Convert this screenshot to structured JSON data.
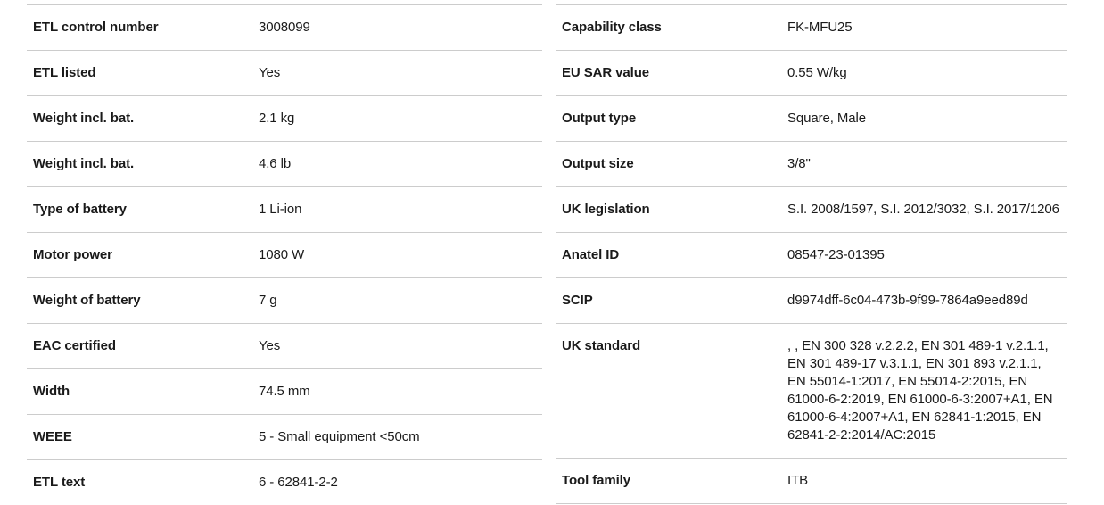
{
  "page": {
    "background_color": "#ffffff",
    "text_color": "#1a1a1a",
    "divider_color": "#cccccc"
  },
  "spec": {
    "left": {
      "rows": [
        {
          "label": "ETL control number",
          "value": "3008099"
        },
        {
          "label": "ETL listed",
          "value": "Yes"
        },
        {
          "label": "Weight incl. bat.",
          "value": "2.1 kg"
        },
        {
          "label": "Weight incl. bat.",
          "value": "4.6 lb"
        },
        {
          "label": "Type of battery",
          "value": "1 Li-ion"
        },
        {
          "label": "Motor power",
          "value": "1080 W"
        },
        {
          "label": "Weight of battery",
          "value": "7 g"
        },
        {
          "label": "EAC certified",
          "value": "Yes"
        },
        {
          "label": "Width",
          "value": "74.5 mm"
        },
        {
          "label": "WEEE",
          "value": "5 - Small equipment <50cm"
        },
        {
          "label": "ETL text",
          "value": "6 - 62841-2-2"
        }
      ]
    },
    "right": {
      "rows": [
        {
          "label": "Capability class",
          "value": "FK-MFU25"
        },
        {
          "label": "EU SAR value",
          "value": "0.55 W/kg"
        },
        {
          "label": "Output type",
          "value": "Square, Male"
        },
        {
          "label": "Output size",
          "value": "3/8\""
        },
        {
          "label": "UK legislation",
          "value": "S.I. 2008/1597, S.I. 2012/3032, S.I. 2017/1206"
        },
        {
          "label": "Anatel ID",
          "value": "08547-23-01395"
        },
        {
          "label": "SCIP",
          "value": "d9974dff-6c04-473b-9f99-7864a9eed89d"
        },
        {
          "label": "UK standard",
          "value": ", , EN 300 328 v.2.2.2, EN 301 489-1 v.2.1.1, EN 301 489-17 v.3.1.1, EN 301 893 v.2.1.1, EN 55014-1:2017, EN 55014-2:2015, EN 61000-6-2:2019, EN 61000-6-3:2007+A1, EN 61000-6-4:2007+A1, EN 62841-1:2015, EN 62841-2-2:2014/AC:2015"
        },
        {
          "label": "Tool family",
          "value": "ITB"
        }
      ]
    }
  }
}
